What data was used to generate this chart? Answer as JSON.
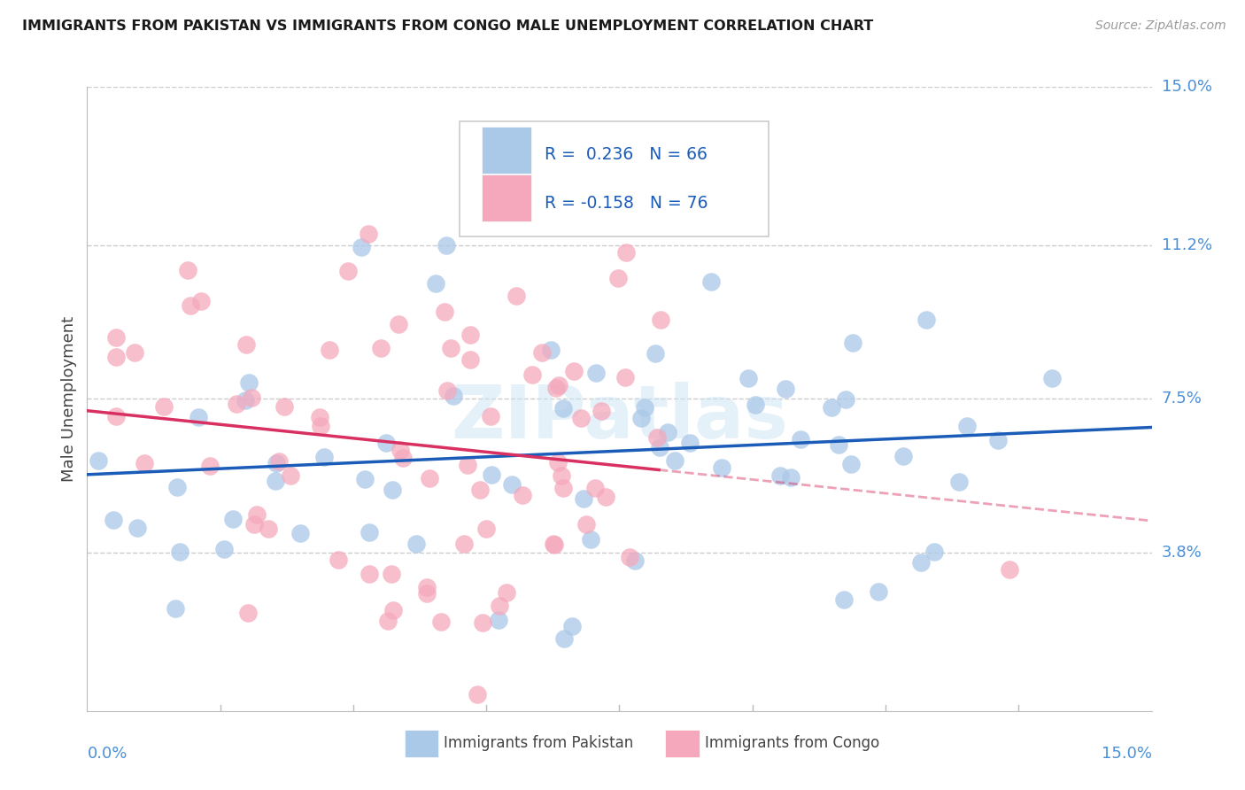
{
  "title": "IMMIGRANTS FROM PAKISTAN VS IMMIGRANTS FROM CONGO MALE UNEMPLOYMENT CORRELATION CHART",
  "source": "Source: ZipAtlas.com",
  "ylabel": "Male Unemployment",
  "xlim": [
    0.0,
    0.15
  ],
  "ylim": [
    0.0,
    0.15
  ],
  "yticks": [
    0.038,
    0.075,
    0.112,
    0.15
  ],
  "ytick_labels": [
    "3.8%",
    "7.5%",
    "11.2%",
    "15.0%"
  ],
  "pakistan_color": "#aac8e8",
  "congo_color": "#f5a8bc",
  "pakistan_line_color": "#1a5cb8",
  "congo_line_color": "#d83060",
  "pakistan_R": 0.236,
  "pakistan_N": 66,
  "congo_R": -0.158,
  "congo_N": 76,
  "watermark": "ZIPatlas",
  "label_color": "#4a90d9",
  "title_color": "#1a1a1a",
  "source_color": "#999999",
  "legend_text_color": "#1a5cb8",
  "grid_color": "#cccccc",
  "background": "#ffffff"
}
